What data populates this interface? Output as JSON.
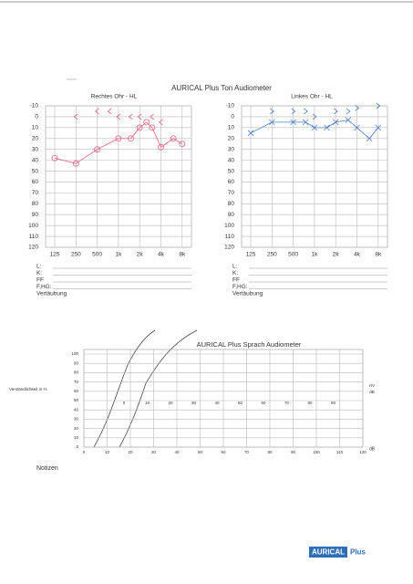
{
  "header": {
    "title": "AURICAL Plus Ton Audiometer"
  },
  "tone": {
    "yticks": [
      -10,
      0,
      10,
      20,
      30,
      40,
      50,
      60,
      70,
      80,
      90,
      100,
      110,
      120
    ],
    "xticks": [
      {
        "value": 125,
        "label": "125"
      },
      {
        "value": 250,
        "label": "250"
      },
      {
        "value": 500,
        "label": "500"
      },
      {
        "value": 1000,
        "label": "1k"
      },
      {
        "value": 2000,
        "label": "2k"
      },
      {
        "value": 4000,
        "label": "4k"
      },
      {
        "value": 8000,
        "label": "8k"
      }
    ],
    "right": {
      "label": "Rechtes Ohr - HL",
      "air": {
        "x": [
          125,
          250,
          500,
          1000,
          1500,
          2000,
          2500,
          3000,
          4000,
          6000,
          8000
        ],
        "values": [
          38,
          43,
          30,
          20,
          20,
          10,
          5,
          10,
          28,
          20,
          25
        ]
      },
      "bone": {
        "x": [
          250,
          500,
          750,
          1000,
          1500,
          2000,
          3000,
          4000
        ],
        "values": [
          0,
          -5,
          -5,
          0,
          0,
          0,
          0,
          5
        ]
      }
    },
    "left": {
      "label": "Linkes Ohr - HL",
      "air": {
        "x": [
          125,
          250,
          500,
          750,
          1000,
          1500,
          2000,
          3000,
          4000,
          6000,
          8000
        ],
        "values": [
          15,
          5,
          5,
          5,
          10,
          10,
          5,
          3,
          10,
          20,
          10
        ]
      },
      "bone": {
        "x": [
          250,
          500,
          750,
          1000,
          2000,
          3000,
          4000,
          8000
        ],
        "values": [
          -5,
          -5,
          -5,
          0,
          -5,
          -5,
          -8,
          -10
        ]
      }
    },
    "fields_right": [
      "L:",
      "K:",
      "FF",
      "F,HG:",
      "Vertäubung"
    ],
    "fields_left": [
      "L:",
      "K:",
      "FF",
      "F,HG:",
      "Vertäubung"
    ]
  },
  "speech": {
    "title": "AURICAL Plus Sprach Audiometer",
    "y_label": "Verständlichkeit in %",
    "yticks": [
      0,
      10,
      20,
      30,
      40,
      50,
      60,
      70,
      80,
      90,
      100
    ],
    "xticks": [
      0,
      10,
      20,
      30,
      40,
      50,
      60,
      70,
      80,
      90,
      100,
      110,
      120
    ],
    "inner_ticks": [
      0,
      10,
      20,
      30,
      40,
      50,
      60,
      70,
      80,
      90
    ],
    "right_label_top": "HV",
    "right_label_bottom": "dB",
    "x_unit": "dB"
  },
  "notes_label": "Notizen",
  "logo": {
    "brand": "AURICAL",
    "suffix": "Plus"
  }
}
